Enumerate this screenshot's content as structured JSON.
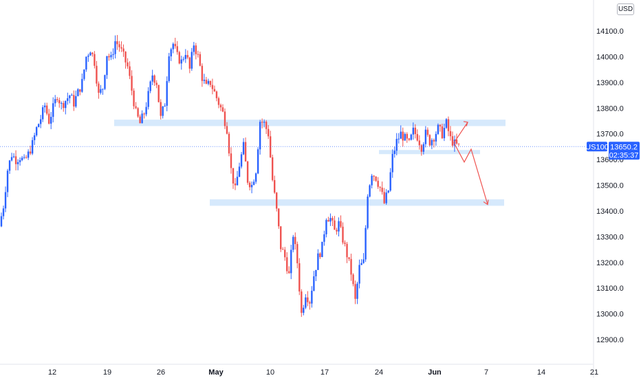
{
  "currency": "USD",
  "symbol_badge": "US100",
  "price_badge": {
    "price": "13650.2",
    "countdown": "02:35:37"
  },
  "colors": {
    "up": "#2962ff",
    "down": "#ef5350",
    "zone": "#cfe5fb",
    "arrow": "#ef5350",
    "badge": "#2962ff"
  },
  "chart_data": {
    "type": "candlestick",
    "title": "",
    "xlabel": "",
    "ylabel": "",
    "y_axis_position": "right",
    "ylim": [
      12860,
      14170
    ],
    "yticks": [
      "12900.0",
      "13000.0",
      "13100.0",
      "13200.0",
      "13300.0",
      "13400.0",
      "13500.0",
      "13600.0",
      "13700.0",
      "13800.0",
      "13900.0",
      "14000.0",
      "14100.0"
    ],
    "xticks": [
      {
        "label": "12",
        "bold": false
      },
      {
        "label": "19",
        "bold": false
      },
      {
        "label": "26",
        "bold": false
      },
      {
        "label": "May",
        "bold": true
      },
      {
        "label": "10",
        "bold": false
      },
      {
        "label": "17",
        "bold": false
      },
      {
        "label": "24",
        "bold": false
      },
      {
        "label": "Jun",
        "bold": true
      },
      {
        "label": "7",
        "bold": false
      },
      {
        "label": "14",
        "bold": false
      },
      {
        "label": "21",
        "bold": false
      }
    ],
    "last_price": 13650.2,
    "zones": [
      {
        "from": 13730,
        "to": 13755
      },
      {
        "from": 13420,
        "to": 13445
      },
      {
        "from": 13623,
        "to": 13637
      }
    ],
    "projection": [
      13665,
      13745,
      13665,
      13590,
      13640,
      13425
    ],
    "price_path": [
      13340,
      13420,
      13560,
      13620,
      13600,
      13610,
      13590,
      13620,
      13660,
      13720,
      13760,
      13810,
      13750,
      13800,
      13850,
      13810,
      13830,
      13850,
      13820,
      13860,
      13900,
      14000,
      14030,
      13980,
      13850,
      13880,
      14010,
      13990,
      14060,
      14040,
      14000,
      13960,
      13870,
      13780,
      13740,
      13780,
      13850,
      13930,
      13900,
      13760,
      13820,
      14020,
      14050,
      14000,
      13980,
      14020,
      13950,
      14050,
      14000,
      13920,
      13880,
      13900,
      13860,
      13820,
      13780,
      13720,
      13560,
      13480,
      13580,
      13650,
      13520,
      13500,
      13560,
      13750,
      13740,
      13700,
      13520,
      13400,
      13260,
      13220,
      13150,
      13310,
      13200,
      13000,
      13080,
      13050,
      13150,
      13220,
      13260,
      13380,
      13370,
      13320,
      13350,
      13290,
      13230,
      13160,
      13050,
      13180,
      13200,
      13470,
      13550,
      13530,
      13490,
      13430,
      13480,
      13610,
      13670,
      13700,
      13680,
      13660,
      13710,
      13690,
      13650,
      13700,
      13670,
      13690,
      13720,
      13700,
      13740,
      13680,
      13660,
      13650
    ]
  }
}
